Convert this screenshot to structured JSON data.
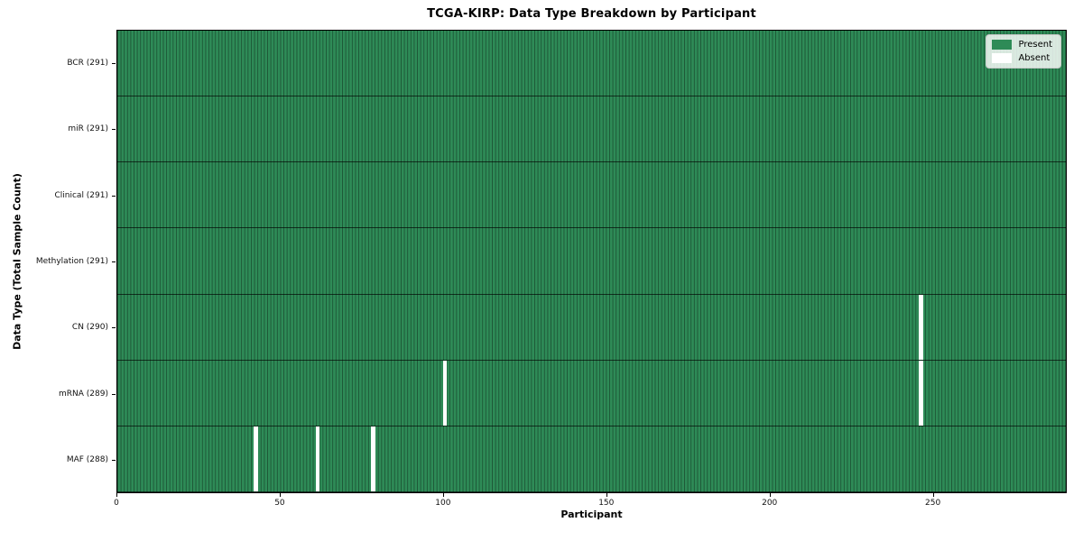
{
  "chart_data": {
    "type": "heatmap",
    "title": "TCGA-KIRP: Data Type Breakdown by Participant",
    "xlabel": "Participant",
    "ylabel": "Data Type (Total Sample Count)",
    "x_ticks": [
      0,
      50,
      100,
      150,
      200,
      250
    ],
    "x_range": [
      0,
      291
    ],
    "n_participants": 291,
    "grid": false,
    "legend_position": "upper right",
    "rows": [
      {
        "label": "BCR (291)",
        "data_type": "BCR",
        "present_count": 291,
        "absent_participants": []
      },
      {
        "label": "miR (291)",
        "data_type": "miR",
        "present_count": 291,
        "absent_participants": []
      },
      {
        "label": "Clinical (291)",
        "data_type": "Clinical",
        "present_count": 291,
        "absent_participants": []
      },
      {
        "label": "Methylation (291)",
        "data_type": "Methylation",
        "present_count": 291,
        "absent_participants": []
      },
      {
        "label": "CN (290)",
        "data_type": "CN",
        "present_count": 290,
        "absent_participants": [
          246
        ]
      },
      {
        "label": "mRNA (289)",
        "data_type": "mRNA",
        "present_count": 289,
        "absent_participants": [
          100,
          246
        ]
      },
      {
        "label": "MAF (288)",
        "data_type": "MAF",
        "present_count": 288,
        "absent_participants": [
          42,
          61,
          78
        ]
      }
    ],
    "legend": [
      {
        "label": "Present",
        "color": "#2e8b57"
      },
      {
        "label": "Absent",
        "color": "#ffffff"
      }
    ],
    "colors": {
      "present": "#2e8b57",
      "absent": "#ffffff",
      "cell_edge": "rgba(0,0,0,0.38)",
      "row_separator": "rgba(0,0,0,0.65)",
      "frame": "#000000"
    }
  }
}
